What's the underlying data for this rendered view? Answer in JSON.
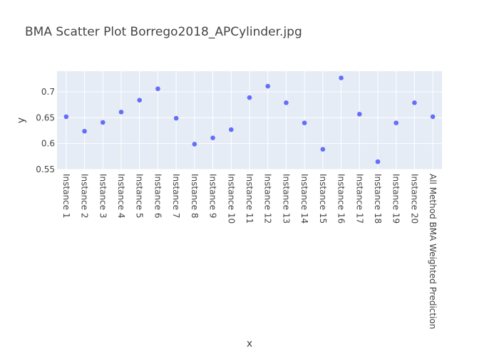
{
  "chart_data": {
    "type": "scatter",
    "title": "BMA Scatter Plot Borrego2018_APCylinder.jpg",
    "xlabel": "x",
    "ylabel": "y",
    "categories": [
      "Instance 1",
      "Instance 2",
      "Instance 3",
      "Instance 4",
      "Instance 5",
      "Instance 6",
      "Instance 7",
      "Instance 8",
      "Instance 9",
      "Instance 10",
      "Instance 11",
      "Instance 12",
      "Instance 13",
      "Instance 14",
      "Instance 15",
      "Instance 16",
      "Instance 17",
      "Instance 18",
      "Instance 19",
      "Instance 20",
      "All Method BMA Weighted Prediction"
    ],
    "values": [
      0.652,
      0.624,
      0.641,
      0.661,
      0.684,
      0.706,
      0.649,
      0.599,
      0.611,
      0.627,
      0.689,
      0.711,
      0.679,
      0.64,
      0.589,
      0.727,
      0.657,
      0.565,
      0.64,
      0.679,
      0.652
    ],
    "ylim": [
      0.55,
      0.74
    ],
    "yticks": [
      0.55,
      0.6,
      0.65,
      0.7
    ],
    "ytick_labels": [
      "0.55",
      "0.6",
      "0.65",
      "0.7"
    ],
    "grid": true,
    "colors": {
      "marker": "#636efa",
      "plot_bg": "#e5ecf6",
      "grid": "#ffffff"
    }
  }
}
